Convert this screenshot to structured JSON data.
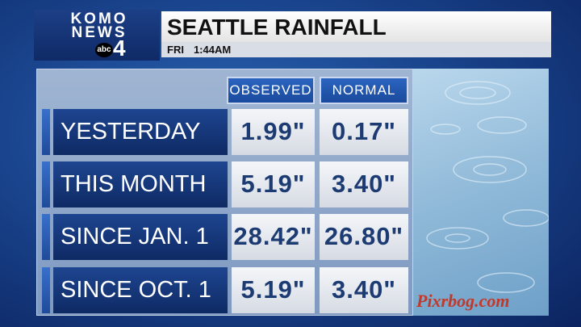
{
  "logo": {
    "line1": "KOMO",
    "line2": "NEWS",
    "network": "abc",
    "channel": "4"
  },
  "header": {
    "title": "SEATTLE RAINFALL",
    "day": "FRI",
    "time": "1:44AM"
  },
  "table": {
    "columns": [
      "OBSERVED",
      "NORMAL"
    ],
    "rows": [
      {
        "label": "YESTERDAY",
        "cells": [
          "1.99\"",
          "0.17\""
        ]
      },
      {
        "label": "THIS MONTH",
        "cells": [
          "5.19\"",
          "3.40\""
        ]
      },
      {
        "label": "SINCE JAN. 1",
        "cells": [
          "28.42\"",
          "26.80\""
        ]
      },
      {
        "label": "SINCE OCT. 1",
        "cells": [
          "5.19\"",
          "3.40\""
        ]
      }
    ]
  },
  "watermark": "Pixrbog.com"
}
